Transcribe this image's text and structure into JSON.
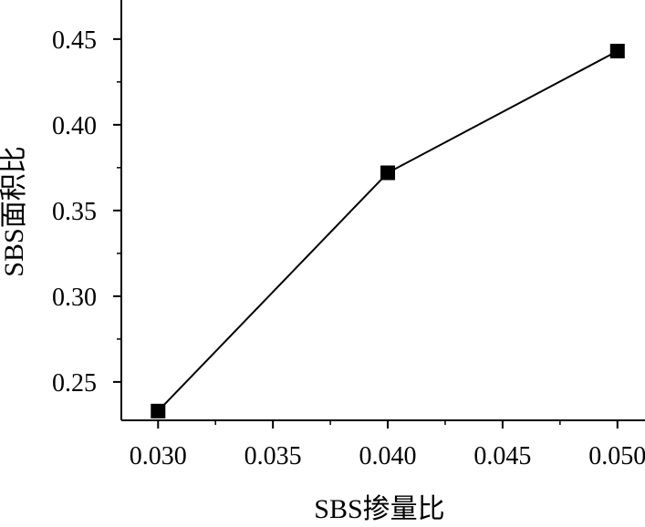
{
  "chart_data": {
    "type": "line",
    "title": "",
    "xlabel": "SBS掺量比",
    "ylabel": "SBS面积比",
    "x": [
      0.03,
      0.04,
      0.05
    ],
    "series": [
      {
        "values": [
          0.233,
          0.372,
          0.443
        ],
        "marker": "square",
        "color": "#000000"
      }
    ],
    "xlim": [
      0.0284,
      0.0512
    ],
    "ylim": [
      0.2276,
      0.4728
    ],
    "x_ticks": [
      "0.030",
      "0.035",
      "0.040",
      "0.045",
      "0.050"
    ],
    "x_tick_values": [
      0.03,
      0.035,
      0.04,
      0.045,
      0.05
    ],
    "y_ticks": [
      "0.25",
      "0.30",
      "0.35",
      "0.40",
      "0.45"
    ],
    "y_tick_values": [
      0.25,
      0.3,
      0.35,
      0.4,
      0.45
    ],
    "grid": false,
    "legend": "none"
  }
}
